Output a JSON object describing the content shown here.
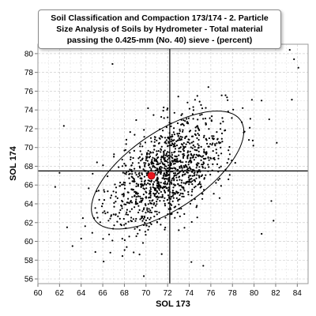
{
  "chart_data": {
    "type": "scatter",
    "title": "Soil Classification and Compaction 173/174 - 2. Particle Size Analysis of Soils by Hydrometer - Total material passing the 0.425-mm (No. 40) sieve - (percent)",
    "xlabel": "SOL 173",
    "ylabel": "SOL 174",
    "xlim": [
      60,
      85
    ],
    "ylim": [
      55.5,
      81
    ],
    "x_ticks": [
      60,
      62,
      64,
      66,
      68,
      70,
      72,
      74,
      76,
      78,
      80,
      82,
      84
    ],
    "y_ticks": [
      56,
      58,
      60,
      62,
      64,
      66,
      68,
      70,
      72,
      74,
      76,
      78,
      80
    ],
    "grid": true,
    "point_color": "#000000",
    "highlight": {
      "x": 70.5,
      "y": 67.0,
      "color": "#e8141e"
    },
    "crosshair": {
      "x": 72.2,
      "y": 67.5
    },
    "ellipse": {
      "center": [
        72.0,
        67.6
      ],
      "semi_axis_major": 8.6,
      "semi_axis_minor": 3.9,
      "angle_deg": 40
    },
    "scatter_cloud": {
      "count": 1200,
      "mean": [
        72.0,
        67.5
      ],
      "sd": [
        2.7,
        3.1
      ],
      "correlation": 0.55
    },
    "outliers": [
      {
        "x": 61.6,
        "y": 65.8
      },
      {
        "x": 62.0,
        "y": 67.3
      },
      {
        "x": 62.4,
        "y": 72.3
      },
      {
        "x": 62.7,
        "y": 61.5
      },
      {
        "x": 63.2,
        "y": 59.5
      },
      {
        "x": 64.0,
        "y": 60.3
      },
      {
        "x": 66.9,
        "y": 78.9
      },
      {
        "x": 69.8,
        "y": 56.3
      },
      {
        "x": 74.2,
        "y": 57.8
      },
      {
        "x": 75.3,
        "y": 57.4
      },
      {
        "x": 81.8,
        "y": 62.2
      },
      {
        "x": 83.3,
        "y": 80.4
      },
      {
        "x": 83.7,
        "y": 79.4
      },
      {
        "x": 84.1,
        "y": 78.5
      },
      {
        "x": 83.5,
        "y": 75.1
      },
      {
        "x": 81.4,
        "y": 73.0
      },
      {
        "x": 79.6,
        "y": 72.1
      },
      {
        "x": 82.1,
        "y": 70.5
      },
      {
        "x": 81.6,
        "y": 64.3
      },
      {
        "x": 66.7,
        "y": 58.8
      },
      {
        "x": 80.7,
        "y": 60.8
      }
    ]
  }
}
